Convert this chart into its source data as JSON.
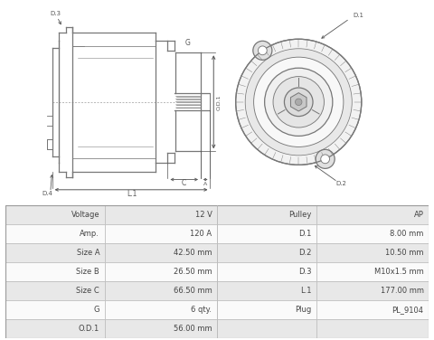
{
  "table_data": [
    [
      "Voltage",
      "12 V",
      "Pulley",
      "AP"
    ],
    [
      "Amp.",
      "120 A",
      "D.1",
      "8.00 mm"
    ],
    [
      "Size A",
      "42.50 mm",
      "D.2",
      "10.50 mm"
    ],
    [
      "Size B",
      "26.50 mm",
      "D.3",
      "M10x1.5 mm"
    ],
    [
      "Size C",
      "66.50 mm",
      "L.1",
      "177.00 mm"
    ],
    [
      "G",
      "6 qty.",
      "Plug",
      "PL_9104"
    ],
    [
      "O.D.1",
      "56.00 mm",
      "",
      ""
    ]
  ],
  "header_bg": "#e8e8e8",
  "row_bg_alt": "#f0f0f0",
  "row_bg_main": "#fafafa",
  "border_color": "#bbbbbb",
  "text_color": "#444444",
  "line_color": "#777777",
  "dim_color": "#555555",
  "bg_color": "#ffffff"
}
